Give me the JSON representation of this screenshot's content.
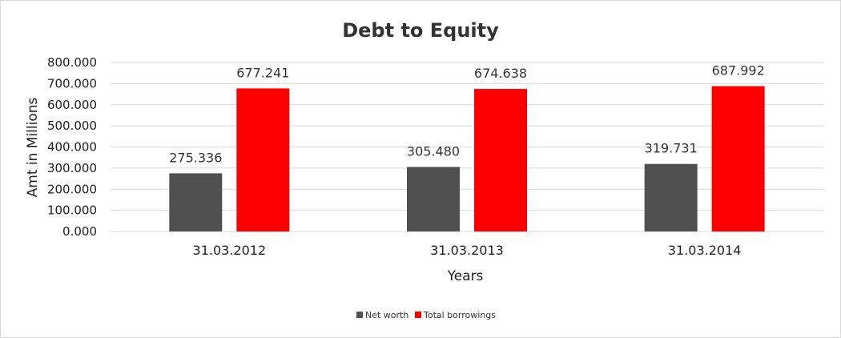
{
  "chart_data": {
    "type": "bar",
    "title": "Debt to Equity",
    "xlabel": "Years",
    "ylabel": "Amt in Millions",
    "categories": [
      "31.03.2012",
      "31.03.2013",
      "31.03.2014"
    ],
    "series": [
      {
        "name": "Net worth",
        "values": [
          275.336,
          305.48,
          319.731
        ],
        "color": "#505050"
      },
      {
        "name": "Total borrowings",
        "values": [
          677.241,
          674.638,
          687.992
        ],
        "color": "#ff0000"
      }
    ],
    "data_labels": [
      [
        "275.336",
        "305.480",
        "319.731"
      ],
      [
        "677.241",
        "674.638",
        "687.992"
      ]
    ],
    "ylim": [
      0,
      800
    ],
    "yticks": [
      0,
      100,
      200,
      300,
      400,
      500,
      600,
      700,
      800
    ],
    "ytick_labels": [
      "0.000",
      "100.000",
      "200.000",
      "300.000",
      "400.000",
      "500.000",
      "600.000",
      "700.000",
      "800.000"
    ],
    "grid": true,
    "legend_position": "bottom"
  }
}
